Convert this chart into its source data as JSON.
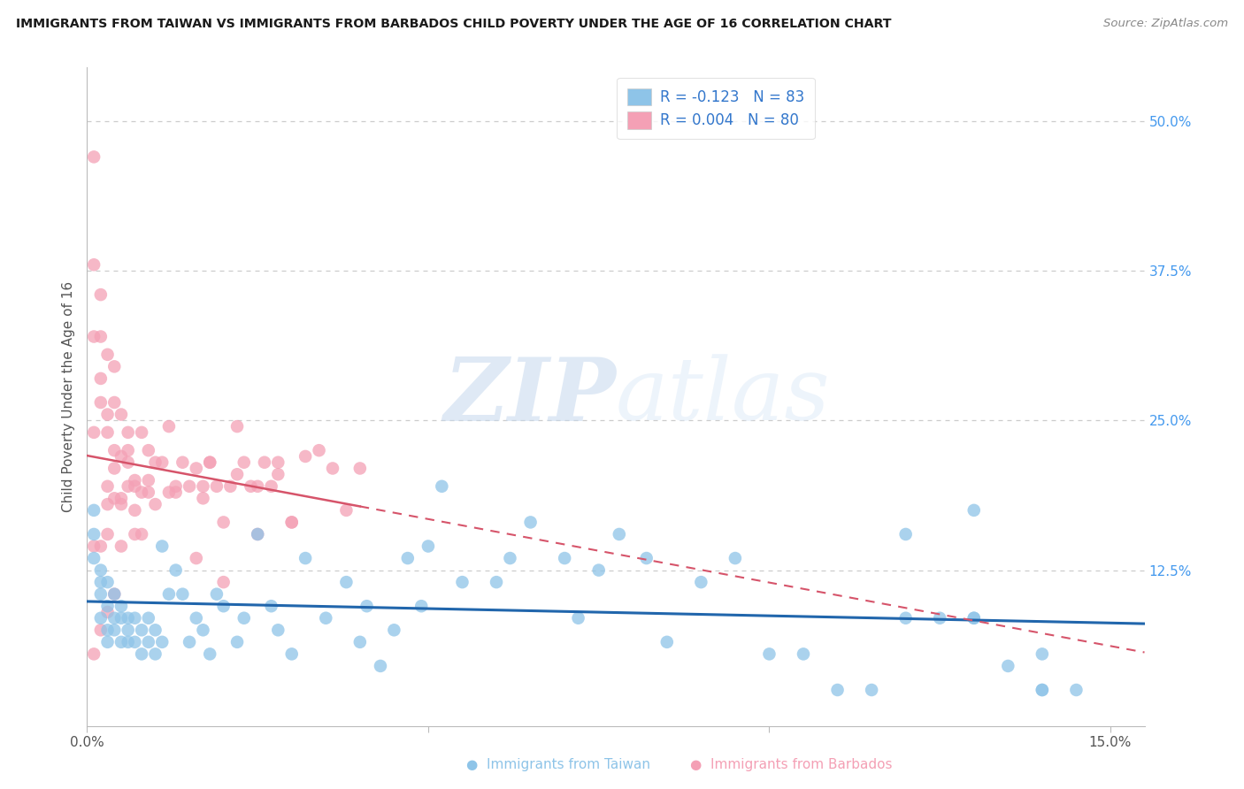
{
  "title": "IMMIGRANTS FROM TAIWAN VS IMMIGRANTS FROM BARBADOS CHILD POVERTY UNDER THE AGE OF 16 CORRELATION CHART",
  "source": "Source: ZipAtlas.com",
  "ylabel": "Child Poverty Under the Age of 16",
  "xlim": [
    0.0,
    0.155
  ],
  "ylim": [
    -0.005,
    0.545
  ],
  "taiwan_R": -0.123,
  "taiwan_N": 83,
  "barbados_R": 0.004,
  "barbados_N": 80,
  "legend_label_taiwan": "Immigrants from Taiwan",
  "legend_label_barbados": "Immigrants from Barbados",
  "taiwan_color": "#8ec4e8",
  "barbados_color": "#f4a0b5",
  "taiwan_line_color": "#2166ac",
  "barbados_line_color": "#d6546a",
  "watermark_zip": "ZIP",
  "watermark_atlas": "atlas",
  "taiwan_x": [
    0.001,
    0.001,
    0.001,
    0.002,
    0.002,
    0.002,
    0.002,
    0.003,
    0.003,
    0.003,
    0.003,
    0.004,
    0.004,
    0.004,
    0.005,
    0.005,
    0.005,
    0.006,
    0.006,
    0.006,
    0.007,
    0.007,
    0.008,
    0.008,
    0.009,
    0.009,
    0.01,
    0.01,
    0.011,
    0.011,
    0.012,
    0.013,
    0.014,
    0.015,
    0.016,
    0.017,
    0.018,
    0.019,
    0.02,
    0.022,
    0.023,
    0.025,
    0.027,
    0.028,
    0.03,
    0.032,
    0.035,
    0.038,
    0.04,
    0.041,
    0.043,
    0.045,
    0.047,
    0.049,
    0.05,
    0.052,
    0.055,
    0.06,
    0.062,
    0.065,
    0.07,
    0.072,
    0.075,
    0.078,
    0.082,
    0.085,
    0.09,
    0.095,
    0.1,
    0.105,
    0.11,
    0.115,
    0.12,
    0.125,
    0.13,
    0.135,
    0.14,
    0.145,
    0.13,
    0.12,
    0.13,
    0.14,
    0.14
  ],
  "taiwan_y": [
    0.155,
    0.135,
    0.175,
    0.105,
    0.125,
    0.085,
    0.115,
    0.095,
    0.075,
    0.115,
    0.065,
    0.085,
    0.075,
    0.105,
    0.085,
    0.065,
    0.095,
    0.085,
    0.065,
    0.075,
    0.065,
    0.085,
    0.055,
    0.075,
    0.065,
    0.085,
    0.055,
    0.075,
    0.065,
    0.145,
    0.105,
    0.125,
    0.105,
    0.065,
    0.085,
    0.075,
    0.055,
    0.105,
    0.095,
    0.065,
    0.085,
    0.155,
    0.095,
    0.075,
    0.055,
    0.135,
    0.085,
    0.115,
    0.065,
    0.095,
    0.045,
    0.075,
    0.135,
    0.095,
    0.145,
    0.195,
    0.115,
    0.115,
    0.135,
    0.165,
    0.135,
    0.085,
    0.125,
    0.155,
    0.135,
    0.065,
    0.115,
    0.135,
    0.055,
    0.055,
    0.025,
    0.025,
    0.085,
    0.085,
    0.085,
    0.045,
    0.055,
    0.025,
    0.085,
    0.155,
    0.175,
    0.025,
    0.025
  ],
  "barbados_x": [
    0.001,
    0.001,
    0.001,
    0.001,
    0.001,
    0.001,
    0.002,
    0.002,
    0.002,
    0.002,
    0.002,
    0.002,
    0.003,
    0.003,
    0.003,
    0.003,
    0.003,
    0.004,
    0.004,
    0.004,
    0.004,
    0.005,
    0.005,
    0.005,
    0.005,
    0.006,
    0.006,
    0.006,
    0.007,
    0.007,
    0.007,
    0.008,
    0.008,
    0.008,
    0.009,
    0.009,
    0.009,
    0.01,
    0.01,
    0.011,
    0.012,
    0.012,
    0.013,
    0.013,
    0.014,
    0.015,
    0.016,
    0.017,
    0.018,
    0.019,
    0.02,
    0.021,
    0.022,
    0.023,
    0.024,
    0.025,
    0.026,
    0.027,
    0.028,
    0.03,
    0.032,
    0.034,
    0.036,
    0.038,
    0.04,
    0.016,
    0.017,
    0.018,
    0.02,
    0.022,
    0.025,
    0.028,
    0.03,
    0.003,
    0.003,
    0.004,
    0.004,
    0.005,
    0.006,
    0.007
  ],
  "barbados_y": [
    0.47,
    0.38,
    0.32,
    0.24,
    0.145,
    0.055,
    0.355,
    0.32,
    0.285,
    0.265,
    0.145,
    0.075,
    0.305,
    0.255,
    0.24,
    0.155,
    0.09,
    0.295,
    0.265,
    0.21,
    0.105,
    0.255,
    0.22,
    0.185,
    0.145,
    0.24,
    0.195,
    0.225,
    0.175,
    0.2,
    0.155,
    0.24,
    0.19,
    0.155,
    0.225,
    0.2,
    0.19,
    0.215,
    0.18,
    0.215,
    0.245,
    0.19,
    0.195,
    0.19,
    0.215,
    0.195,
    0.21,
    0.185,
    0.215,
    0.195,
    0.165,
    0.195,
    0.245,
    0.215,
    0.195,
    0.155,
    0.215,
    0.195,
    0.205,
    0.165,
    0.22,
    0.225,
    0.21,
    0.175,
    0.21,
    0.135,
    0.195,
    0.215,
    0.115,
    0.205,
    0.195,
    0.215,
    0.165,
    0.195,
    0.18,
    0.225,
    0.185,
    0.18,
    0.215,
    0.195
  ]
}
